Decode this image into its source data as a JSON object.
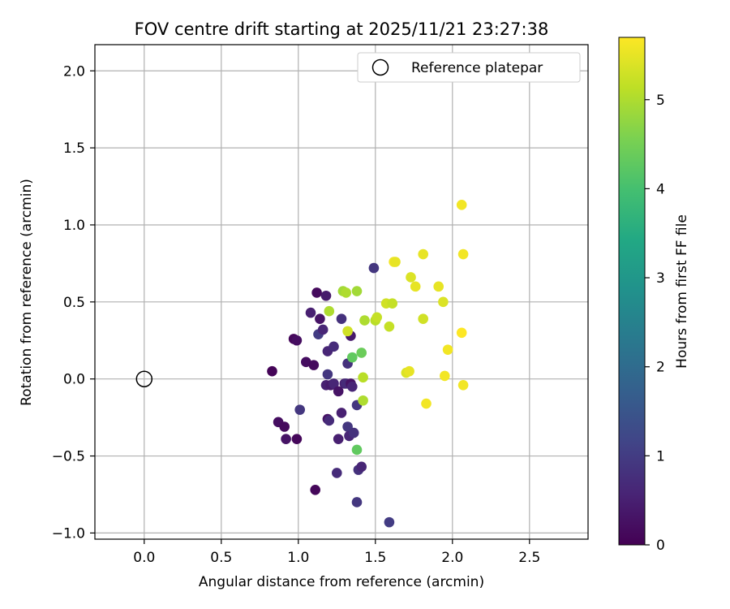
{
  "chart_data": {
    "type": "scatter",
    "title": "FOV centre drift starting at 2025/11/21 23:27:38",
    "xlabel": "Angular distance from reference (arcmin)",
    "ylabel": "Rotation from reference (arcmin)",
    "xlim": [
      -0.32,
      2.88
    ],
    "ylim": [
      -1.04,
      2.17
    ],
    "xticks": [
      0.0,
      0.5,
      1.0,
      1.5,
      2.0,
      2.5
    ],
    "xtick_labels": [
      "0.0",
      "0.5",
      "1.0",
      "1.5",
      "2.0",
      "2.5"
    ],
    "yticks": [
      2.0,
      1.5,
      1.0,
      0.5,
      0.0,
      -0.5,
      -1.0
    ],
    "ytick_labels": [
      "2.0",
      "1.5",
      "1.0",
      "0.5",
      "0.0",
      "−0.5",
      "−1.0"
    ],
    "grid": true,
    "legend": {
      "location": "top-right",
      "entries": [
        "Reference platepar"
      ]
    },
    "reference_point": {
      "x": 0.0,
      "y": 0.0,
      "label": "Reference platepar"
    },
    "colorbar": {
      "label": "Hours from first FF file",
      "range": [
        0,
        5.7
      ],
      "ticks": [
        0,
        1,
        2,
        3,
        4,
        5
      ],
      "tick_labels": [
        "0",
        "1",
        "2",
        "3",
        "4",
        "5"
      ],
      "colormap": "viridis"
    },
    "points": [
      {
        "x": 0.83,
        "y": 0.05,
        "t": 0.05
      },
      {
        "x": 0.87,
        "y": -0.28,
        "t": 0.2
      },
      {
        "x": 0.91,
        "y": -0.31,
        "t": 0.15
      },
      {
        "x": 0.92,
        "y": -0.39,
        "t": 0.3
      },
      {
        "x": 0.97,
        "y": 0.26,
        "t": 0.1
      },
      {
        "x": 0.99,
        "y": 0.25,
        "t": 0.2
      },
      {
        "x": 0.99,
        "y": -0.39,
        "t": 0.1
      },
      {
        "x": 1.01,
        "y": -0.2,
        "t": 0.9
      },
      {
        "x": 1.05,
        "y": 0.11,
        "t": 0.2
      },
      {
        "x": 1.08,
        "y": 0.43,
        "t": 0.5
      },
      {
        "x": 1.1,
        "y": 0.09,
        "t": 0.15
      },
      {
        "x": 1.11,
        "y": -0.72,
        "t": 0.1
      },
      {
        "x": 1.12,
        "y": 0.56,
        "t": 0.15
      },
      {
        "x": 1.14,
        "y": 0.39,
        "t": 0.3
      },
      {
        "x": 1.13,
        "y": 0.29,
        "t": 1.0
      },
      {
        "x": 1.16,
        "y": 0.32,
        "t": 0.6
      },
      {
        "x": 1.18,
        "y": 0.54,
        "t": 0.4
      },
      {
        "x": 1.18,
        "y": -0.04,
        "t": 0.5
      },
      {
        "x": 1.19,
        "y": 0.18,
        "t": 0.6
      },
      {
        "x": 1.19,
        "y": 0.03,
        "t": 0.9
      },
      {
        "x": 1.19,
        "y": -0.26,
        "t": 0.3
      },
      {
        "x": 1.2,
        "y": -0.27,
        "t": 0.7
      },
      {
        "x": 1.21,
        "y": -0.04,
        "t": 0.4
      },
      {
        "x": 1.23,
        "y": -0.03,
        "t": 0.6
      },
      {
        "x": 1.23,
        "y": 0.21,
        "t": 0.7
      },
      {
        "x": 1.25,
        "y": -0.61,
        "t": 0.7
      },
      {
        "x": 1.26,
        "y": -0.08,
        "t": 0.3
      },
      {
        "x": 1.26,
        "y": -0.39,
        "t": 0.5
      },
      {
        "x": 1.28,
        "y": 0.39,
        "t": 0.8
      },
      {
        "x": 1.28,
        "y": -0.22,
        "t": 0.5
      },
      {
        "x": 1.3,
        "y": -0.03,
        "t": 0.5
      },
      {
        "x": 1.31,
        "y": -0.03,
        "t": 0.7
      },
      {
        "x": 1.32,
        "y": -0.31,
        "t": 0.9
      },
      {
        "x": 1.32,
        "y": 0.1,
        "t": 0.8
      },
      {
        "x": 1.33,
        "y": -0.37,
        "t": 0.6
      },
      {
        "x": 1.34,
        "y": -0.03,
        "t": 0.3
      },
      {
        "x": 1.34,
        "y": 0.28,
        "t": 0.4
      },
      {
        "x": 1.35,
        "y": -0.05,
        "t": 0.6
      },
      {
        "x": 1.36,
        "y": -0.35,
        "t": 0.8
      },
      {
        "x": 1.38,
        "y": -0.17,
        "t": 0.9
      },
      {
        "x": 1.38,
        "y": -0.8,
        "t": 0.9
      },
      {
        "x": 1.39,
        "y": -0.59,
        "t": 0.8
      },
      {
        "x": 1.41,
        "y": -0.57,
        "t": 0.6
      },
      {
        "x": 1.49,
        "y": 0.72,
        "t": 0.9
      },
      {
        "x": 1.59,
        "y": -0.93,
        "t": 1.0
      },
      {
        "x": 1.38,
        "y": -0.46,
        "t": 4.3
      },
      {
        "x": 1.35,
        "y": 0.14,
        "t": 4.3
      },
      {
        "x": 1.41,
        "y": 0.17,
        "t": 4.4
      },
      {
        "x": 1.2,
        "y": 0.44,
        "t": 5.0
      },
      {
        "x": 1.29,
        "y": 0.57,
        "t": 4.9
      },
      {
        "x": 1.31,
        "y": 0.56,
        "t": 5.0
      },
      {
        "x": 1.32,
        "y": 0.31,
        "t": 5.3
      },
      {
        "x": 1.38,
        "y": 0.57,
        "t": 4.9
      },
      {
        "x": 1.42,
        "y": -0.14,
        "t": 5.0
      },
      {
        "x": 1.42,
        "y": 0.01,
        "t": 5.1
      },
      {
        "x": 1.43,
        "y": 0.38,
        "t": 5.0
      },
      {
        "x": 1.5,
        "y": 0.38,
        "t": 5.1
      },
      {
        "x": 1.51,
        "y": 0.4,
        "t": 5.2
      },
      {
        "x": 1.57,
        "y": 0.49,
        "t": 5.3
      },
      {
        "x": 1.59,
        "y": 0.34,
        "t": 5.2
      },
      {
        "x": 1.61,
        "y": 0.49,
        "t": 5.2
      },
      {
        "x": 1.62,
        "y": 0.76,
        "t": 5.6
      },
      {
        "x": 1.63,
        "y": 0.76,
        "t": 5.5
      },
      {
        "x": 1.7,
        "y": 0.04,
        "t": 5.4
      },
      {
        "x": 1.72,
        "y": 0.05,
        "t": 5.5
      },
      {
        "x": 1.73,
        "y": 0.66,
        "t": 5.4
      },
      {
        "x": 1.76,
        "y": 0.6,
        "t": 5.5
      },
      {
        "x": 1.81,
        "y": 0.39,
        "t": 5.3
      },
      {
        "x": 1.81,
        "y": 0.81,
        "t": 5.5
      },
      {
        "x": 1.83,
        "y": -0.16,
        "t": 5.6
      },
      {
        "x": 1.91,
        "y": 0.6,
        "t": 5.5
      },
      {
        "x": 1.94,
        "y": 0.5,
        "t": 5.4
      },
      {
        "x": 1.95,
        "y": 0.02,
        "t": 5.6
      },
      {
        "x": 1.97,
        "y": 0.19,
        "t": 5.6
      },
      {
        "x": 2.06,
        "y": 1.13,
        "t": 5.6
      },
      {
        "x": 2.06,
        "y": 0.3,
        "t": 5.7
      },
      {
        "x": 2.07,
        "y": 0.81,
        "t": 5.6
      },
      {
        "x": 2.07,
        "y": -0.04,
        "t": 5.6
      }
    ]
  }
}
